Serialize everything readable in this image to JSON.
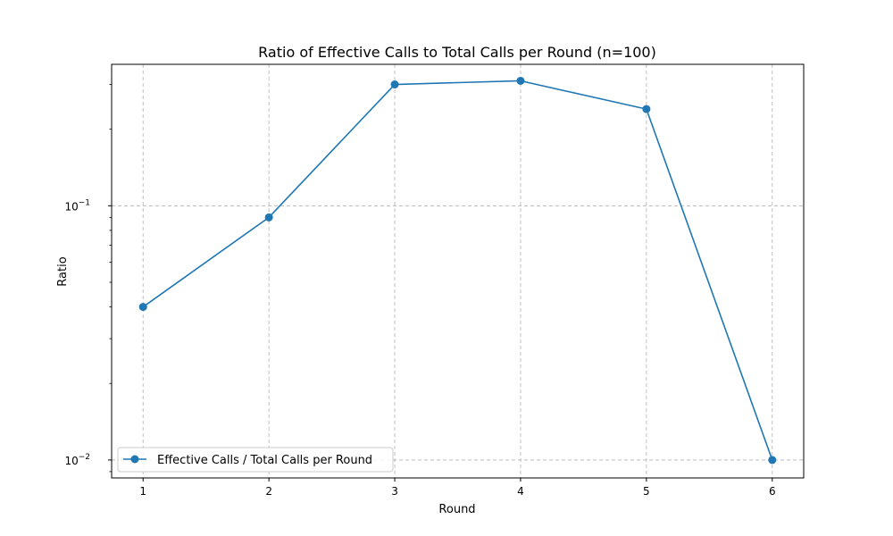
{
  "chart_data": {
    "type": "line",
    "title": "Ratio of Effective Calls to Total Calls per Round (n=100)",
    "xlabel": "Round",
    "ylabel": "Ratio",
    "x": [
      1,
      2,
      3,
      4,
      5,
      6
    ],
    "x_ticks": [
      "1",
      "2",
      "3",
      "4",
      "5",
      "6"
    ],
    "xlim": [
      0.75,
      6.25
    ],
    "y_scale": "log",
    "ylim": [
      0.0085,
      0.36
    ],
    "y_ticks": [
      {
        "value": 0.1,
        "base": "10",
        "exp": "−1"
      },
      {
        "value": 0.01,
        "base": "10",
        "exp": "−2"
      }
    ],
    "grid": true,
    "legend_position": "lower-left",
    "series": [
      {
        "name": "Effective Calls / Total Calls per Round",
        "values": [
          0.04,
          0.09,
          0.3,
          0.31,
          0.24,
          0.01
        ],
        "color": "#1f77b4",
        "marker": "circle"
      }
    ]
  }
}
